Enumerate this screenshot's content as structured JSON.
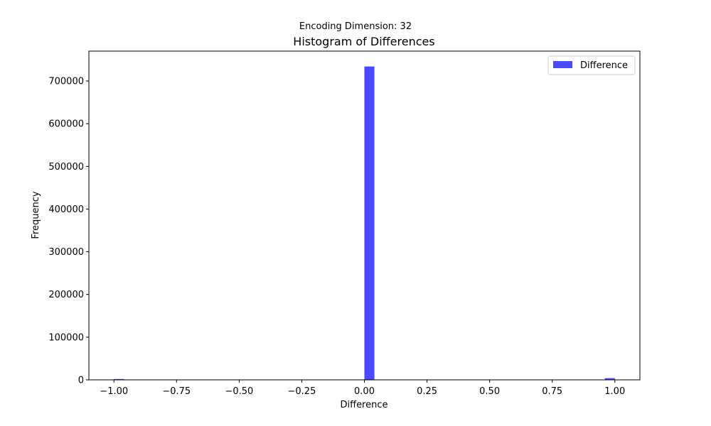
{
  "chart_data": {
    "type": "bar",
    "suptitle": "Encoding Dimension: 32",
    "title": "Histogram of Differences",
    "xlabel": "Difference",
    "ylabel": "Frequency",
    "xlim": [
      -1.1,
      1.1
    ],
    "ylim": [
      0,
      770000
    ],
    "xticks": [
      -1.0,
      -0.75,
      -0.5,
      -0.25,
      0.0,
      0.25,
      0.5,
      0.75,
      1.0
    ],
    "xtick_labels": [
      "−1.00",
      "−0.75",
      "−0.50",
      "−0.25",
      "0.00",
      "0.25",
      "0.50",
      "0.75",
      "1.00"
    ],
    "yticks": [
      0,
      100000,
      200000,
      300000,
      400000,
      500000,
      600000,
      700000
    ],
    "ytick_labels": [
      "0",
      "100000",
      "200000",
      "300000",
      "400000",
      "500000",
      "600000",
      "700000"
    ],
    "bin_width": 0.04,
    "bins": [
      {
        "x_start": -1.0,
        "x_end": -0.96,
        "value": 2000
      },
      {
        "x_start": 0.0,
        "x_end": 0.04,
        "value": 734000
      },
      {
        "x_start": 0.96,
        "x_end": 1.0,
        "value": 4000
      }
    ],
    "series": [
      {
        "name": "Difference",
        "color": "#4a4aff"
      }
    ],
    "legend": {
      "position": "upper right"
    },
    "grid": false
  }
}
